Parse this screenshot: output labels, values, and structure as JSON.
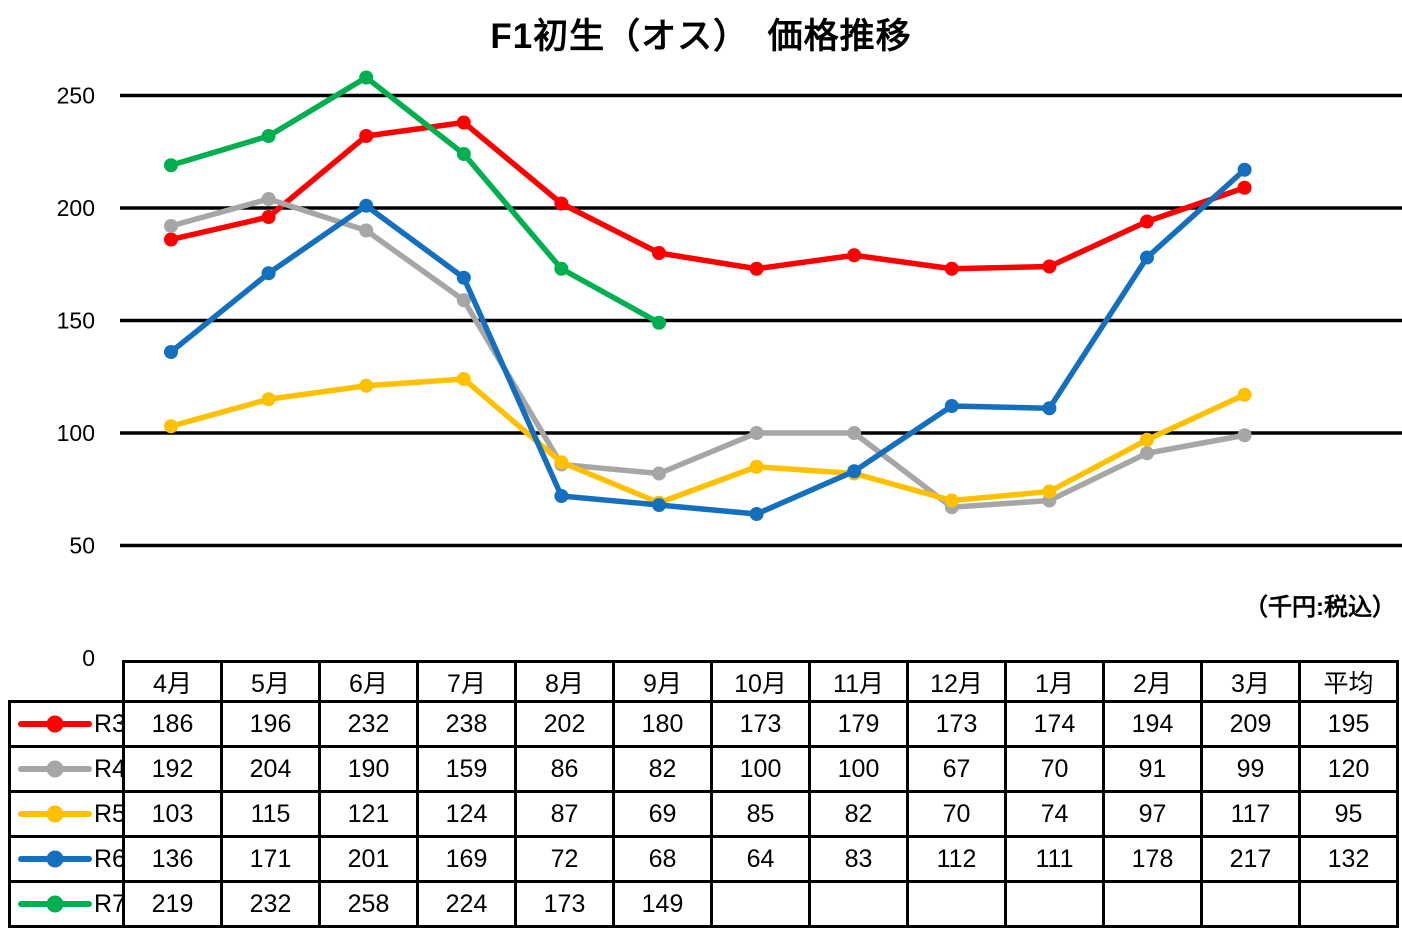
{
  "title": "F1初生（オス）　価格推移",
  "unit_note": "（千円:税込）",
  "y_axis": {
    "ticks": [
      "0",
      "50",
      "100",
      "150",
      "200",
      "250"
    ]
  },
  "chart_data": {
    "type": "line",
    "title": "F1初生（オス）　価格推移",
    "categories": [
      "4月",
      "5月",
      "6月",
      "7月",
      "8月",
      "9月",
      "10月",
      "11月",
      "12月",
      "1月",
      "2月",
      "3月"
    ],
    "xlabel": "",
    "ylabel": "",
    "ylim": [
      0,
      250
    ],
    "y_ticks": [
      0,
      50,
      100,
      150,
      200,
      250
    ],
    "grid": "horizontal",
    "legend_position": "table-row-headers",
    "marker": "circle",
    "series": [
      {
        "name": "R3",
        "color": "#FF0000",
        "values": [
          186,
          196,
          232,
          238,
          202,
          180,
          173,
          179,
          173,
          174,
          194,
          209
        ],
        "average": 195
      },
      {
        "name": "R4",
        "color": "#A6A6A6",
        "values": [
          192,
          204,
          190,
          159,
          86,
          82,
          100,
          100,
          67,
          70,
          91,
          99
        ],
        "average": 120
      },
      {
        "name": "R5",
        "color": "#FFC000",
        "values": [
          103,
          115,
          121,
          124,
          87,
          69,
          85,
          82,
          70,
          74,
          97,
          117
        ],
        "average": 95
      },
      {
        "name": "R6",
        "color": "#1470BE",
        "values": [
          136,
          171,
          201,
          169,
          72,
          68,
          64,
          83,
          112,
          111,
          178,
          217
        ],
        "average": 132
      },
      {
        "name": "R7",
        "color": "#00B050",
        "values": [
          219,
          232,
          258,
          224,
          173,
          149
        ],
        "average": null
      }
    ]
  },
  "table": {
    "column_headers": [
      "4月",
      "5月",
      "6月",
      "7月",
      "8月",
      "9月",
      "10月",
      "11月",
      "12月",
      "1月",
      "2月",
      "3月",
      "平均"
    ]
  }
}
